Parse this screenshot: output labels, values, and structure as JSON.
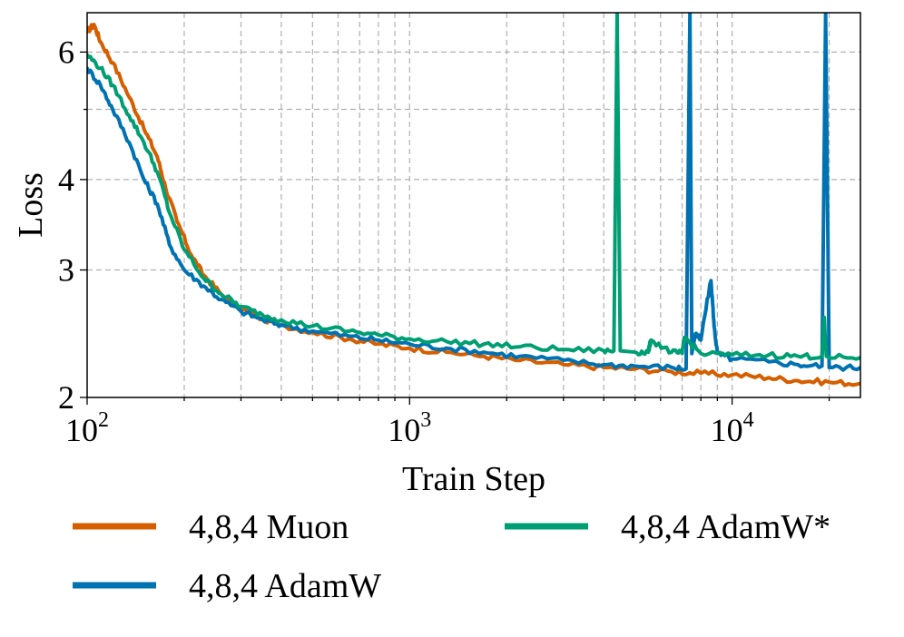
{
  "chart_data": {
    "type": "line",
    "xlabel": "Train Step",
    "ylabel": "Loss",
    "xscale": "log",
    "yscale": "log",
    "xlim": [
      100,
      25000
    ],
    "ylim": [
      2.0,
      6.8
    ],
    "xticks": [
      {
        "value": 100,
        "base": "10",
        "exp": "2"
      },
      {
        "value": 1000,
        "base": "10",
        "exp": "3"
      },
      {
        "value": 10000,
        "base": "10",
        "exp": "4"
      }
    ],
    "yticks": [
      {
        "value": 2,
        "label": "2"
      },
      {
        "value": 3,
        "label": "3"
      },
      {
        "value": 4,
        "label": "4"
      },
      {
        "value": 6,
        "label": "6"
      }
    ],
    "ygrid_minor": [
      5
    ],
    "grid": true,
    "legend_position": "below",
    "series": [
      {
        "name": "4,8,4 Muon",
        "color": "#D55E00",
        "x": [
          100,
          105,
          110,
          120,
          135,
          150,
          165,
          175,
          190,
          210,
          230,
          260,
          300,
          350,
          400,
          500,
          650,
          800,
          1000,
          1300,
          1700,
          2200,
          3000,
          4000,
          5000,
          6500,
          8000,
          10000,
          13000,
          16000,
          20000,
          25000
        ],
        "y": [
          6.4,
          6.55,
          6.2,
          5.8,
          5.2,
          4.7,
          4.3,
          3.9,
          3.5,
          3.15,
          2.95,
          2.78,
          2.65,
          2.57,
          2.52,
          2.46,
          2.41,
          2.37,
          2.34,
          2.31,
          2.28,
          2.25,
          2.22,
          2.2,
          2.19,
          2.17,
          2.16,
          2.15,
          2.13,
          2.11,
          2.1,
          2.09
        ]
      },
      {
        "name": "4,8,4 AdamW",
        "color": "#0072B2",
        "x": [
          100,
          110,
          120,
          135,
          150,
          165,
          180,
          200,
          230,
          260,
          300,
          350,
          400,
          500,
          650,
          800,
          1000,
          1300,
          1700,
          2200,
          3000,
          4000,
          5000,
          6500,
          7200,
          7400,
          7500,
          7700,
          8000,
          8600,
          8800,
          9000,
          10000,
          13000,
          16000,
          19000,
          19500,
          20000,
          20500,
          25000
        ],
        "y": [
          5.7,
          5.4,
          5.0,
          4.5,
          4.0,
          3.7,
          3.25,
          3.0,
          2.85,
          2.73,
          2.63,
          2.56,
          2.52,
          2.47,
          2.43,
          2.4,
          2.37,
          2.34,
          2.31,
          2.28,
          2.25,
          2.22,
          2.21,
          2.2,
          2.19,
          6.8,
          2.3,
          2.45,
          2.4,
          2.9,
          2.5,
          2.3,
          2.26,
          2.24,
          2.22,
          2.21,
          6.8,
          2.2,
          2.2,
          2.2
        ]
      },
      {
        "name": "4,8,4 AdamW*",
        "color": "#009E73",
        "x": [
          100,
          110,
          120,
          135,
          150,
          165,
          180,
          200,
          230,
          260,
          300,
          350,
          400,
          500,
          650,
          800,
          1000,
          1300,
          1700,
          2200,
          3000,
          4000,
          4300,
          4400,
          4500,
          5000,
          5500,
          5600,
          6500,
          7000,
          7100,
          8000,
          10000,
          13000,
          16000,
          19000,
          19300,
          19600,
          25000
        ],
        "y": [
          5.95,
          5.7,
          5.4,
          4.9,
          4.5,
          4.1,
          3.6,
          3.2,
          2.92,
          2.78,
          2.67,
          2.6,
          2.56,
          2.51,
          2.47,
          2.44,
          2.41,
          2.39,
          2.37,
          2.35,
          2.33,
          2.32,
          2.32,
          6.8,
          2.32,
          2.31,
          2.31,
          2.4,
          2.31,
          2.3,
          2.42,
          2.3,
          2.29,
          2.29,
          2.28,
          2.28,
          2.58,
          2.28,
          2.27
        ]
      }
    ]
  }
}
